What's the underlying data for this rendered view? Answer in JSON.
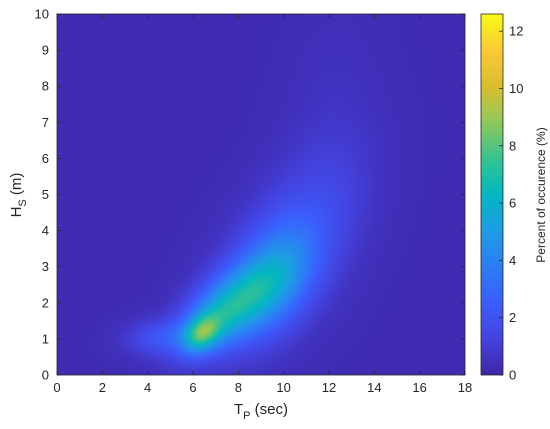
{
  "chart_data": {
    "type": "heatmap",
    "xlabel_main": "T",
    "xlabel_sub": "P",
    "xlabel_unit": " (sec)",
    "ylabel_main": "H",
    "ylabel_sub": "S",
    "ylabel_unit": " (m)",
    "xlim": [
      0,
      18
    ],
    "ylim": [
      0,
      10
    ],
    "x_ticks": [
      "0",
      "2",
      "4",
      "6",
      "8",
      "10",
      "12",
      "14",
      "16",
      "18"
    ],
    "y_ticks": [
      "0",
      "1",
      "2",
      "3",
      "4",
      "5",
      "6",
      "7",
      "8",
      "9",
      "10"
    ],
    "colorbar": {
      "label": "Percent of occurence (%)",
      "range": [
        0,
        12.6
      ],
      "ticks": [
        "0",
        "2",
        "4",
        "6",
        "8",
        "10",
        "12"
      ],
      "colormap": "parula"
    },
    "grid": false,
    "peak": {
      "x": 6.5,
      "y": 1.2,
      "value": 12.6
    },
    "blobs": [
      {
        "x": 12.0,
        "y": 6.3,
        "sx": 1.5,
        "sy": 2.5,
        "rho": 0.2,
        "amp": 0.35
      },
      {
        "x": 10.2,
        "y": 3.5,
        "sx": 2.1,
        "sy": 1.7,
        "rho": 0.55,
        "amp": 1.7
      },
      {
        "x": 9.3,
        "y": 2.5,
        "sx": 1.3,
        "sy": 0.95,
        "rho": 0.45,
        "amp": 2.8
      },
      {
        "x": 7.2,
        "y": 1.7,
        "sx": 1.25,
        "sy": 0.75,
        "rho": 0.5,
        "amp": 4.6
      },
      {
        "x": 6.4,
        "y": 1.15,
        "sx": 0.55,
        "sy": 0.35,
        "rho": 0.3,
        "amp": 4.4
      },
      {
        "x": 4.6,
        "y": 1.05,
        "sx": 1.1,
        "sy": 0.35,
        "rho": 0.1,
        "amp": 1.6
      },
      {
        "x": 9.5,
        "y": 2.6,
        "sx": 1.4,
        "sy": 1.1,
        "rho": 0.3,
        "amp": 1.2
      }
    ],
    "background_value": 0.25
  }
}
